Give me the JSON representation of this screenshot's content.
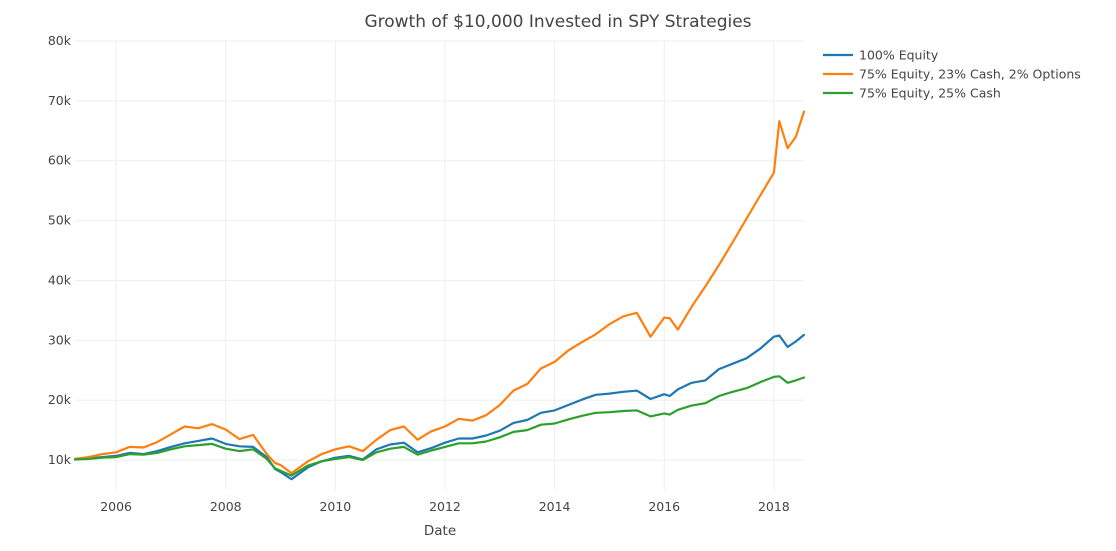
{
  "chart_data": {
    "type": "line",
    "title": "Growth of $10,000 Invested in SPY Strategies",
    "xlabel": "Date",
    "ylabel": "",
    "xlim": [
      2005.25,
      2018.55
    ],
    "ylim": [
      5000,
      80000
    ],
    "x_ticks": [
      2006,
      2008,
      2010,
      2012,
      2014,
      2016,
      2018
    ],
    "x_tick_labels": [
      "2006",
      "2008",
      "2010",
      "2012",
      "2014",
      "2016",
      "2018"
    ],
    "y_ticks": [
      10000,
      20000,
      30000,
      40000,
      50000,
      60000,
      70000,
      80000
    ],
    "y_tick_labels": [
      "10k",
      "20k",
      "30k",
      "40k",
      "50k",
      "60k",
      "70k",
      "80k"
    ],
    "grid": true,
    "legend_position": "top-right",
    "series": [
      {
        "name": "100% Equity",
        "color": "#1f77b4",
        "x": [
          2005.25,
          2005.5,
          2005.75,
          2006.0,
          2006.25,
          2006.5,
          2006.75,
          2007.0,
          2007.25,
          2007.5,
          2007.75,
          2008.0,
          2008.25,
          2008.5,
          2008.75,
          2008.9,
          2009.0,
          2009.2,
          2009.5,
          2009.75,
          2010.0,
          2010.25,
          2010.5,
          2010.75,
          2011.0,
          2011.25,
          2011.5,
          2011.75,
          2012.0,
          2012.25,
          2012.5,
          2012.75,
          2013.0,
          2013.25,
          2013.5,
          2013.75,
          2014.0,
          2014.25,
          2014.5,
          2014.75,
          2015.0,
          2015.25,
          2015.5,
          2015.75,
          2016.0,
          2016.1,
          2016.25,
          2016.5,
          2016.75,
          2017.0,
          2017.25,
          2017.5,
          2017.75,
          2018.0,
          2018.1,
          2018.25,
          2018.4,
          2018.55
        ],
        "values": [
          10100,
          10300,
          10500,
          10700,
          11200,
          11000,
          11500,
          12200,
          12800,
          13200,
          13600,
          12700,
          12300,
          12200,
          10500,
          8500,
          8000,
          6800,
          8800,
          9800,
          10400,
          10700,
          10100,
          11800,
          12600,
          12900,
          11300,
          12000,
          12900,
          13600,
          13600,
          14100,
          14900,
          16200,
          16700,
          17900,
          18300,
          19200,
          20100,
          20900,
          21100,
          21400,
          21600,
          20200,
          21000,
          20700,
          21800,
          22900,
          23300,
          25200,
          26100,
          27000,
          28600,
          30600,
          30800,
          28900,
          29800,
          30900
        ]
      },
      {
        "name": "75% Equity, 23% Cash, 2% Options",
        "color": "#ff7f0e",
        "x": [
          2005.25,
          2005.5,
          2005.75,
          2006.0,
          2006.25,
          2006.5,
          2006.75,
          2007.0,
          2007.25,
          2007.5,
          2007.75,
          2008.0,
          2008.25,
          2008.5,
          2008.75,
          2008.9,
          2009.0,
          2009.2,
          2009.5,
          2009.75,
          2010.0,
          2010.25,
          2010.5,
          2010.75,
          2011.0,
          2011.25,
          2011.5,
          2011.75,
          2012.0,
          2012.25,
          2012.5,
          2012.75,
          2013.0,
          2013.25,
          2013.5,
          2013.75,
          2014.0,
          2014.25,
          2014.5,
          2014.75,
          2015.0,
          2015.25,
          2015.5,
          2015.75,
          2016.0,
          2016.1,
          2016.25,
          2016.5,
          2016.75,
          2017.0,
          2017.25,
          2017.5,
          2017.75,
          2018.0,
          2018.1,
          2018.25,
          2018.4,
          2018.55
        ],
        "values": [
          10200,
          10500,
          11000,
          11300,
          12200,
          12100,
          13000,
          14300,
          15600,
          15300,
          16000,
          15100,
          13500,
          14200,
          11000,
          9500,
          9200,
          7800,
          9800,
          11000,
          11800,
          12300,
          11500,
          13400,
          15000,
          15600,
          13400,
          14800,
          15600,
          16900,
          16600,
          17500,
          19200,
          21600,
          22700,
          25300,
          26400,
          28300,
          29700,
          31000,
          32700,
          34000,
          34600,
          30600,
          33800,
          33700,
          31800,
          35600,
          39000,
          42600,
          46400,
          50300,
          54200,
          58000,
          66600,
          62100,
          64000,
          68200
        ]
      },
      {
        "name": "75% Equity, 25% Cash",
        "color": "#2ca02c",
        "x": [
          2005.25,
          2005.5,
          2005.75,
          2006.0,
          2006.25,
          2006.5,
          2006.75,
          2007.0,
          2007.25,
          2007.5,
          2007.75,
          2008.0,
          2008.25,
          2008.5,
          2008.75,
          2008.9,
          2009.0,
          2009.2,
          2009.5,
          2009.75,
          2010.0,
          2010.25,
          2010.5,
          2010.75,
          2011.0,
          2011.25,
          2011.5,
          2011.75,
          2012.0,
          2012.25,
          2012.5,
          2012.75,
          2013.0,
          2013.25,
          2013.5,
          2013.75,
          2014.0,
          2014.25,
          2014.5,
          2014.75,
          2015.0,
          2015.25,
          2015.5,
          2015.75,
          2016.0,
          2016.1,
          2016.25,
          2016.5,
          2016.75,
          2017.0,
          2017.25,
          2017.5,
          2017.75,
          2018.0,
          2018.1,
          2018.25,
          2018.4,
          2018.55
        ],
        "values": [
          10100,
          10200,
          10400,
          10500,
          11000,
          10900,
          11200,
          11800,
          12300,
          12500,
          12700,
          11900,
          11500,
          11800,
          10200,
          8600,
          8200,
          7400,
          9100,
          9800,
          10200,
          10500,
          10000,
          11300,
          11900,
          12200,
          10900,
          11600,
          12200,
          12800,
          12800,
          13100,
          13800,
          14700,
          15000,
          15900,
          16100,
          16800,
          17400,
          17900,
          18000,
          18200,
          18300,
          17300,
          17800,
          17600,
          18400,
          19100,
          19500,
          20700,
          21400,
          22000,
          23000,
          23900,
          24000,
          22900,
          23300,
          23800
        ]
      }
    ]
  }
}
